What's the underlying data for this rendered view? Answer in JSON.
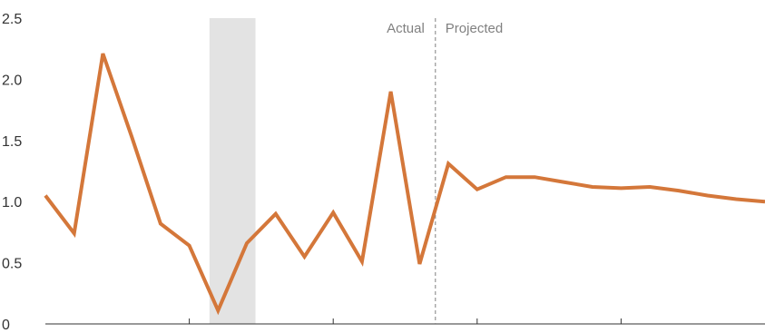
{
  "chart_data": {
    "type": "line",
    "title": "",
    "xlabel": "",
    "ylabel": "",
    "ylim": [
      0,
      2.5
    ],
    "yticks": [
      {
        "value": 0,
        "label": "0"
      },
      {
        "value": 0.5,
        "label": "0.5"
      },
      {
        "value": 1.0,
        "label": "1.0"
      },
      {
        "value": 1.5,
        "label": "1.5"
      },
      {
        "value": 2.0,
        "label": "2.0"
      },
      {
        "value": 2.5,
        "label": "2.5"
      }
    ],
    "x": [
      0,
      1,
      2,
      3,
      4,
      5,
      6,
      7,
      8,
      9,
      10,
      11,
      12,
      13,
      14,
      15,
      16,
      17,
      18,
      19,
      20,
      21,
      22,
      23,
      24,
      25
    ],
    "xlim": [
      0,
      25
    ],
    "x_tick_marks": [
      5,
      10,
      15,
      20
    ],
    "grid": false,
    "shaded_region": [
      5.7,
      7.3
    ],
    "divider_x": 13.55,
    "annotations": {
      "actual": "Actual",
      "projected": "Projected"
    },
    "series": [
      {
        "values": [
          1.05,
          0.74,
          2.21,
          1.53,
          0.82,
          0.64,
          0.11,
          0.66,
          0.9,
          0.55,
          0.91,
          0.51,
          1.9,
          0.49,
          1.31,
          1.1,
          1.2,
          1.2,
          1.16,
          1.12,
          1.11,
          1.12,
          1.09,
          1.05,
          1.02,
          1.0
        ],
        "color": "#d4773a"
      }
    ],
    "colors": {
      "line": "#d4773a",
      "shade": "#e3e3e3",
      "axis": "#333333",
      "divider": "#808080"
    }
  }
}
